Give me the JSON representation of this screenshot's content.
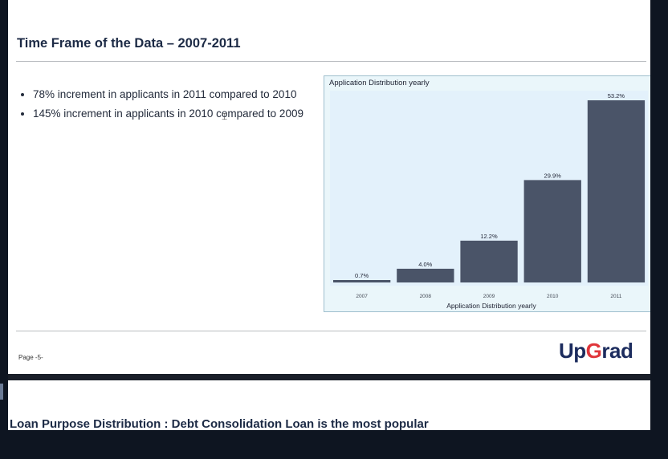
{
  "slide": {
    "title": "Time Frame of the Data – 2007-2011",
    "bullets": [
      "78% increment in applicants in 2011 compared to 2010",
      "145% increment in applicants in 2010 compared to 2009"
    ],
    "page_label": "Page -5-",
    "logo": {
      "part1": "Up",
      "part2": "G",
      "part3": "rad"
    }
  },
  "next_slide": {
    "title": "Loan Purpose Distribution : Debt Consolidation Loan is the most popular"
  },
  "chart_data": {
    "type": "bar",
    "title": "Application Distribution yearly",
    "xlabel": "Application Distribution yearly",
    "ylabel": "",
    "categories": [
      "2007",
      "2008",
      "2009",
      "2010",
      "2011"
    ],
    "values": [
      0.7,
      4.0,
      12.2,
      29.9,
      53.2
    ],
    "value_labels": [
      "0.7%",
      "4.0%",
      "12.2%",
      "29.9%",
      "53.2%"
    ],
    "ylim": [
      0,
      53.2
    ],
    "grid": false,
    "bar_color": "#4a5468",
    "plot_bg": "#e3f1fb"
  },
  "colors": {
    "title": "#1c2a45",
    "logo_blue": "#1c2c5e",
    "logo_red": "#e0363b",
    "outer_bg": "#0e1521"
  }
}
